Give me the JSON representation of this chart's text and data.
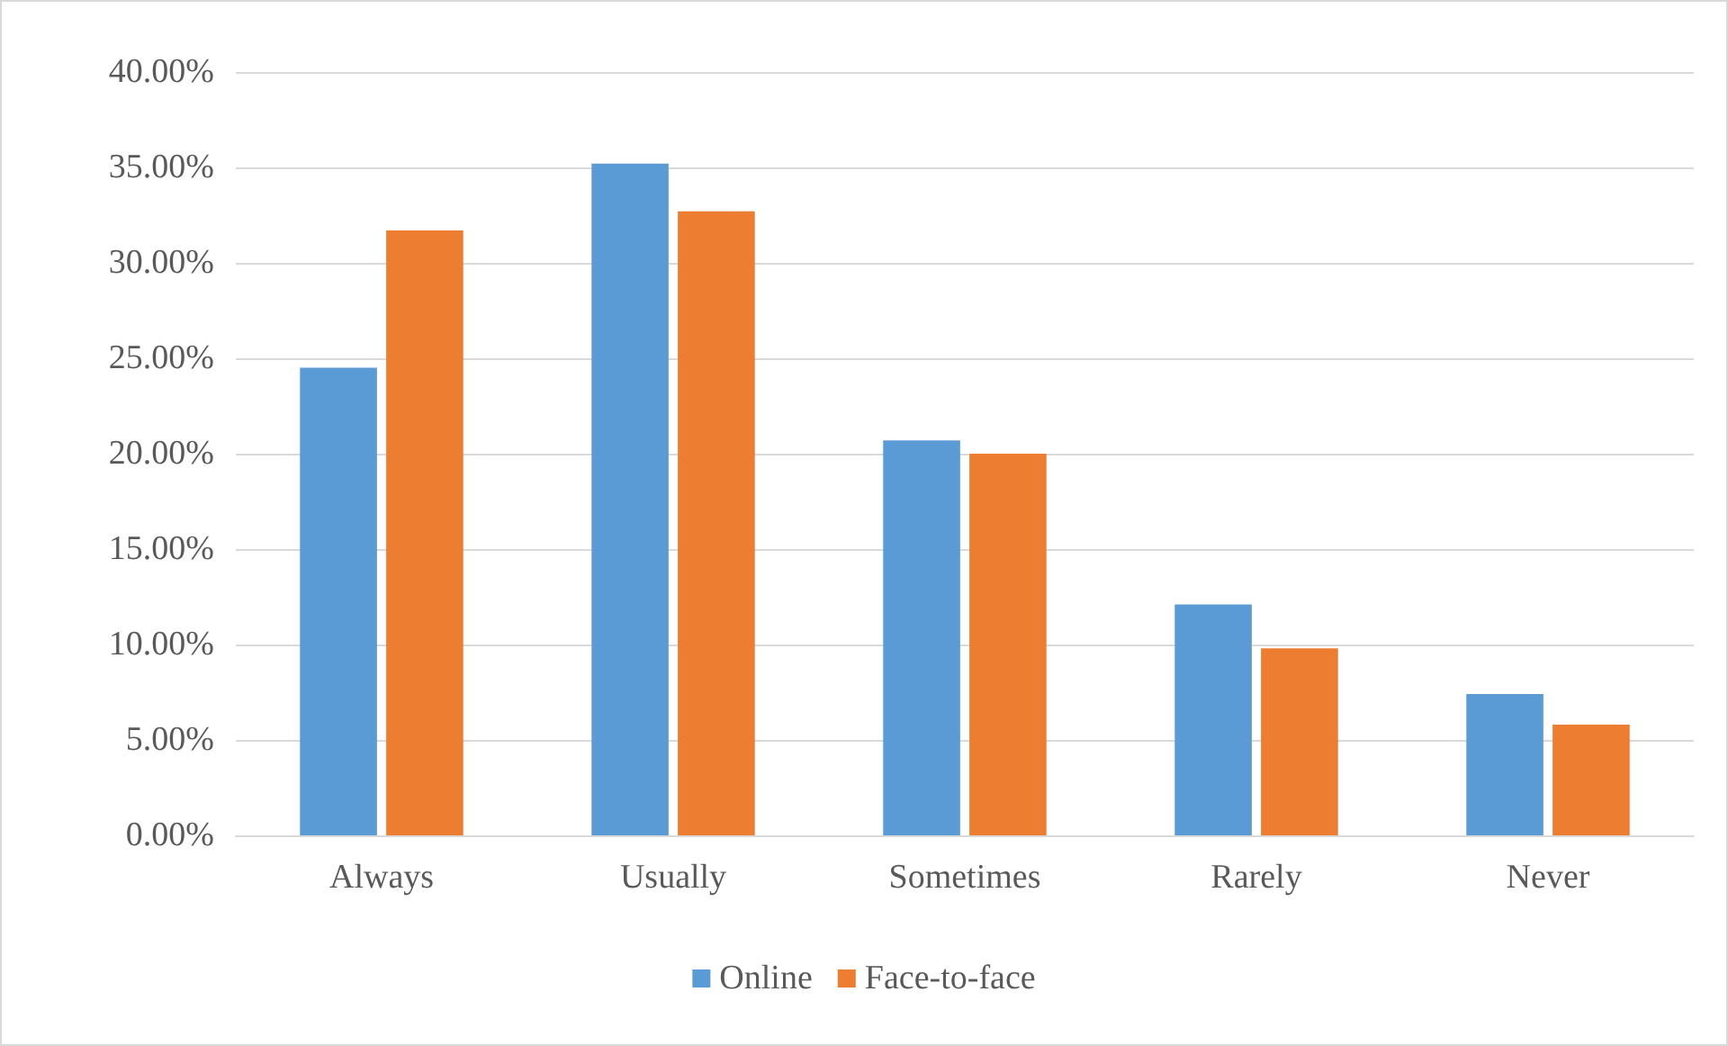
{
  "chart_data": {
    "type": "bar",
    "categories": [
      "Always",
      "Usually",
      "Sometimes",
      "Rarely",
      "Never"
    ],
    "series": [
      {
        "name": "Online",
        "color": "#5b9bd5",
        "values": [
          24.5,
          35.2,
          20.7,
          12.1,
          7.4
        ]
      },
      {
        "name": "Face-to-face",
        "color": "#ed7d31",
        "values": [
          31.7,
          32.7,
          20.0,
          9.8,
          5.8
        ]
      }
    ],
    "ylim": [
      0,
      40
    ],
    "yticks": [
      {
        "value": 0,
        "label": "0.00%"
      },
      {
        "value": 5,
        "label": "5.00%"
      },
      {
        "value": 10,
        "label": "10.00%"
      },
      {
        "value": 15,
        "label": "15.00%"
      },
      {
        "value": 20,
        "label": "20.00%"
      },
      {
        "value": 25,
        "label": "25.00%"
      },
      {
        "value": 30,
        "label": "30.00%"
      },
      {
        "value": 35,
        "label": "35.00%"
      },
      {
        "value": 40,
        "label": "40.00%"
      }
    ],
    "grid": "y",
    "legend": "bottom"
  }
}
